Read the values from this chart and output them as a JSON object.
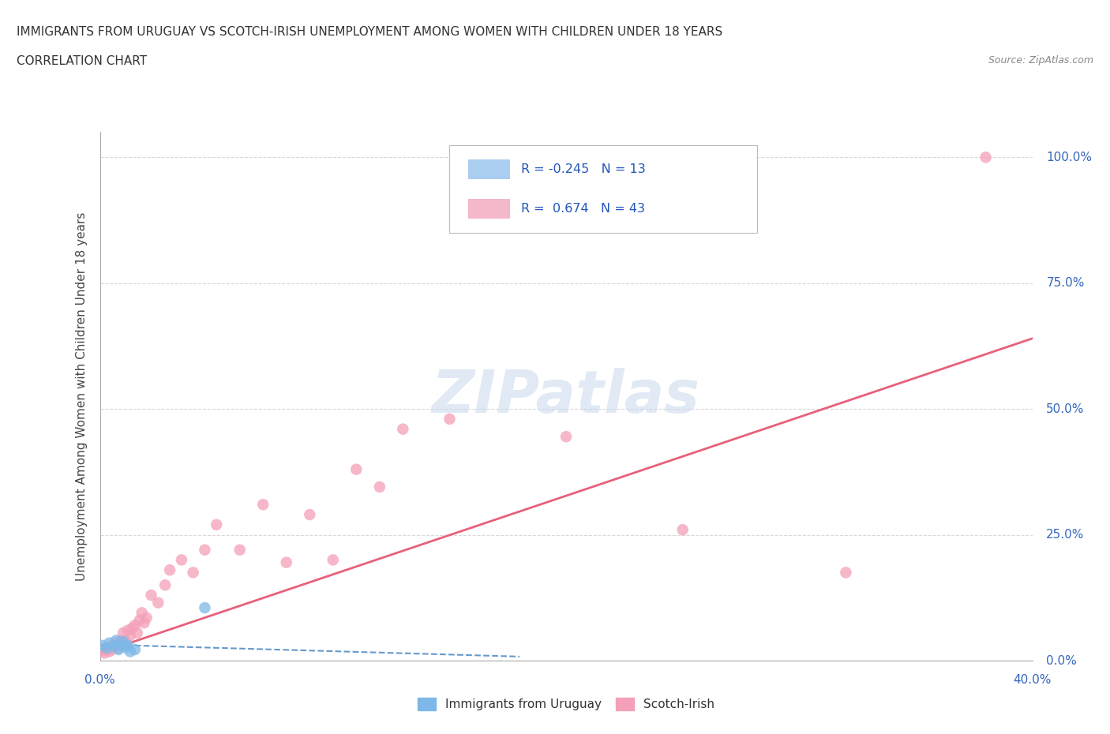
{
  "title_line1": "IMMIGRANTS FROM URUGUAY VS SCOTCH-IRISH UNEMPLOYMENT AMONG WOMEN WITH CHILDREN UNDER 18 YEARS",
  "title_line2": "CORRELATION CHART",
  "source_text": "Source: ZipAtlas.com",
  "ylabel": "Unemployment Among Women with Children Under 18 years",
  "xmin": 0.0,
  "xmax": 0.4,
  "ymin": 0.0,
  "ymax": 1.05,
  "yticks": [
    0.0,
    0.25,
    0.5,
    0.75,
    1.0
  ],
  "ytick_labels": [
    "0.0%",
    "25.0%",
    "50.0%",
    "75.0%",
    "100.0%"
  ],
  "watermark": "ZIPatlas",
  "blue_scatter_color": "#7db8e8",
  "pink_scatter_color": "#f4a0b8",
  "blue_line_color": "#6699cc",
  "pink_line_color": "#e8607a",
  "grid_color": "#d8d8d8",
  "blue_points_x": [
    0.001,
    0.003,
    0.004,
    0.006,
    0.007,
    0.008,
    0.009,
    0.01,
    0.011,
    0.012,
    0.013,
    0.015,
    0.045
  ],
  "blue_points_y": [
    0.03,
    0.025,
    0.035,
    0.028,
    0.04,
    0.022,
    0.032,
    0.038,
    0.026,
    0.03,
    0.018,
    0.022,
    0.105
  ],
  "pink_points_x": [
    0.001,
    0.002,
    0.003,
    0.004,
    0.005,
    0.005,
    0.006,
    0.007,
    0.008,
    0.009,
    0.01,
    0.01,
    0.011,
    0.012,
    0.013,
    0.014,
    0.015,
    0.016,
    0.017,
    0.018,
    0.019,
    0.02,
    0.022,
    0.025,
    0.028,
    0.03,
    0.035,
    0.04,
    0.045,
    0.05,
    0.06,
    0.07,
    0.08,
    0.09,
    0.1,
    0.11,
    0.12,
    0.13,
    0.15,
    0.2,
    0.25,
    0.32,
    0.38
  ],
  "pink_points_y": [
    0.02,
    0.015,
    0.025,
    0.018,
    0.03,
    0.022,
    0.028,
    0.035,
    0.025,
    0.04,
    0.032,
    0.055,
    0.038,
    0.06,
    0.05,
    0.065,
    0.07,
    0.055,
    0.08,
    0.095,
    0.075,
    0.085,
    0.13,
    0.115,
    0.15,
    0.18,
    0.2,
    0.175,
    0.22,
    0.27,
    0.22,
    0.31,
    0.195,
    0.29,
    0.2,
    0.38,
    0.345,
    0.46,
    0.48,
    0.445,
    0.26,
    0.175,
    1.0
  ],
  "pink_line_x0": 0.0,
  "pink_line_x1": 0.4,
  "pink_line_y0": 0.015,
  "pink_line_y1": 0.64,
  "blue_line_x0": 0.0,
  "blue_line_x1": 0.18,
  "blue_line_y0": 0.032,
  "blue_line_y1": 0.008
}
